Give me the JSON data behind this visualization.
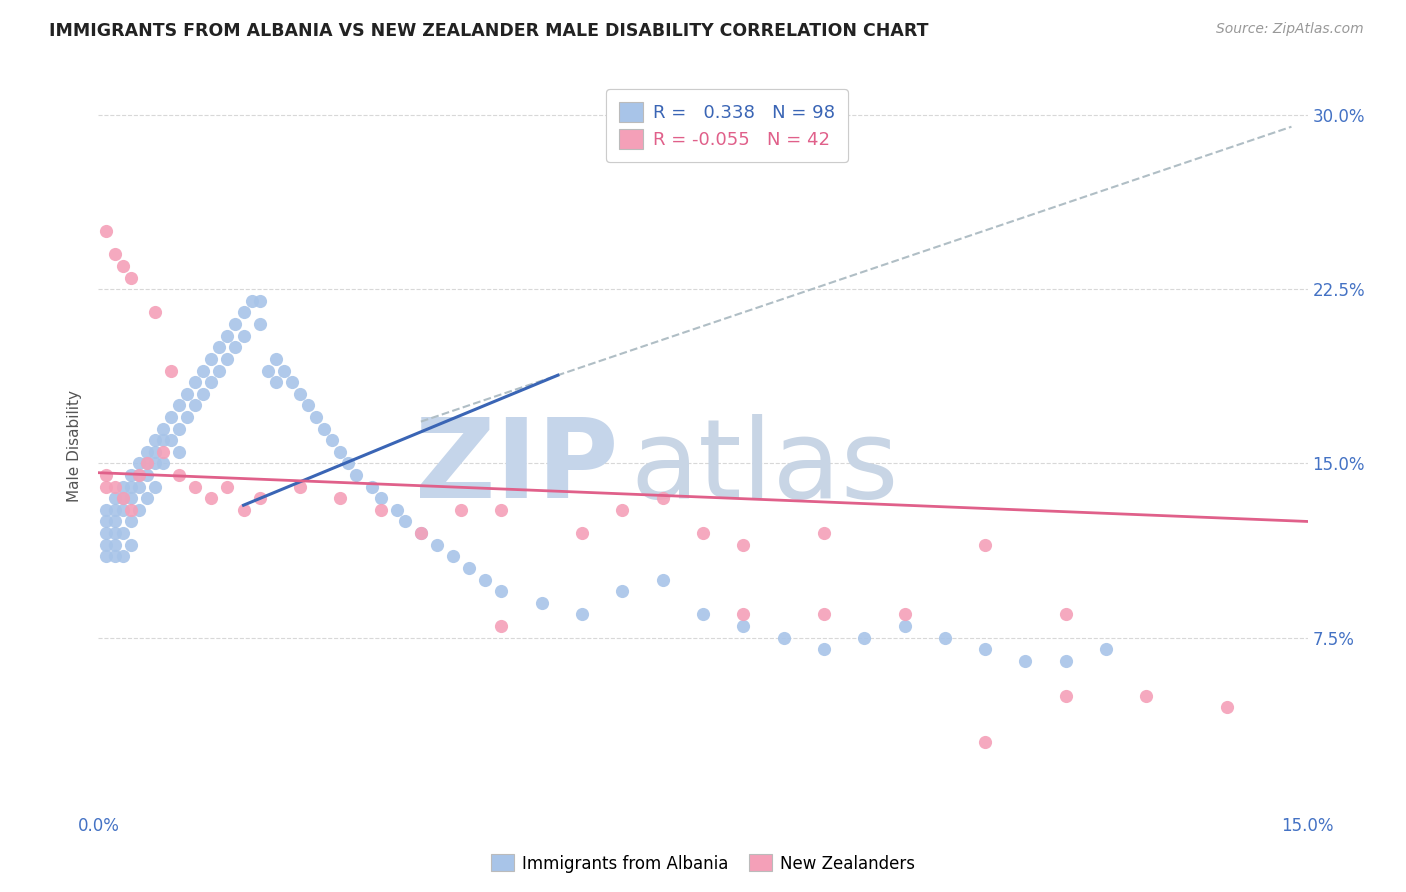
{
  "title": "IMMIGRANTS FROM ALBANIA VS NEW ZEALANDER MALE DISABILITY CORRELATION CHART",
  "source": "Source: ZipAtlas.com",
  "ylabel": "Male Disability",
  "xlim": [
    0.0,
    0.15
  ],
  "ylim": [
    0.0,
    0.315
  ],
  "r_albania": 0.338,
  "n_albania": 98,
  "r_nz": -0.055,
  "n_nz": 42,
  "legend_labels": [
    "Immigrants from Albania",
    "New Zealanders"
  ],
  "albania_color": "#a8c4e8",
  "nz_color": "#f4a0b8",
  "albania_line_color": "#3a65b5",
  "nz_line_color": "#e0608a",
  "dash_color": "#b0bec5",
  "watermark_zip_color": "#c5d5ea",
  "watermark_atlas_color": "#c8d5e5",
  "grid_color": "#d8d8d8",
  "ytick_vals": [
    0.075,
    0.15,
    0.225,
    0.3
  ],
  "ytick_labels": [
    "7.5%",
    "15.0%",
    "22.5%",
    "30.0%"
  ],
  "xtick_vals": [
    0.0,
    0.025,
    0.05,
    0.075,
    0.1,
    0.125,
    0.15
  ],
  "xtick_labels": [
    "0.0%",
    "",
    "",
    "",
    "",
    "",
    "15.0%"
  ],
  "alb_line_x": [
    0.018,
    0.057
  ],
  "alb_line_y": [
    0.132,
    0.188
  ],
  "dash_line_x": [
    0.04,
    0.148
  ],
  "dash_line_y": [
    0.168,
    0.295
  ],
  "nz_line_x": [
    0.0,
    0.15
  ],
  "nz_line_y": [
    0.146,
    0.125
  ],
  "alb_x": [
    0.001,
    0.001,
    0.001,
    0.001,
    0.001,
    0.002,
    0.002,
    0.002,
    0.002,
    0.002,
    0.002,
    0.003,
    0.003,
    0.003,
    0.003,
    0.003,
    0.004,
    0.004,
    0.004,
    0.004,
    0.004,
    0.005,
    0.005,
    0.005,
    0.005,
    0.006,
    0.006,
    0.006,
    0.006,
    0.007,
    0.007,
    0.007,
    0.007,
    0.008,
    0.008,
    0.008,
    0.009,
    0.009,
    0.01,
    0.01,
    0.01,
    0.011,
    0.011,
    0.012,
    0.012,
    0.013,
    0.013,
    0.014,
    0.014,
    0.015,
    0.015,
    0.016,
    0.016,
    0.017,
    0.017,
    0.018,
    0.018,
    0.019,
    0.02,
    0.02,
    0.021,
    0.022,
    0.022,
    0.023,
    0.024,
    0.025,
    0.026,
    0.027,
    0.028,
    0.029,
    0.03,
    0.031,
    0.032,
    0.034,
    0.035,
    0.037,
    0.038,
    0.04,
    0.042,
    0.044,
    0.046,
    0.048,
    0.05,
    0.055,
    0.06,
    0.065,
    0.07,
    0.075,
    0.08,
    0.085,
    0.09,
    0.095,
    0.1,
    0.105,
    0.11,
    0.115,
    0.12,
    0.125
  ],
  "alb_y": [
    0.13,
    0.125,
    0.12,
    0.115,
    0.11,
    0.135,
    0.13,
    0.125,
    0.12,
    0.115,
    0.11,
    0.14,
    0.135,
    0.13,
    0.12,
    0.11,
    0.145,
    0.14,
    0.135,
    0.125,
    0.115,
    0.15,
    0.145,
    0.14,
    0.13,
    0.155,
    0.15,
    0.145,
    0.135,
    0.16,
    0.155,
    0.15,
    0.14,
    0.165,
    0.16,
    0.15,
    0.17,
    0.16,
    0.175,
    0.165,
    0.155,
    0.18,
    0.17,
    0.185,
    0.175,
    0.19,
    0.18,
    0.195,
    0.185,
    0.2,
    0.19,
    0.205,
    0.195,
    0.21,
    0.2,
    0.215,
    0.205,
    0.22,
    0.22,
    0.21,
    0.19,
    0.195,
    0.185,
    0.19,
    0.185,
    0.18,
    0.175,
    0.17,
    0.165,
    0.16,
    0.155,
    0.15,
    0.145,
    0.14,
    0.135,
    0.13,
    0.125,
    0.12,
    0.115,
    0.11,
    0.105,
    0.1,
    0.095,
    0.09,
    0.085,
    0.095,
    0.1,
    0.085,
    0.08,
    0.075,
    0.07,
    0.075,
    0.08,
    0.075,
    0.07,
    0.065,
    0.065,
    0.07
  ],
  "nz_x": [
    0.001,
    0.001,
    0.001,
    0.002,
    0.002,
    0.003,
    0.003,
    0.004,
    0.004,
    0.005,
    0.006,
    0.007,
    0.008,
    0.009,
    0.01,
    0.012,
    0.014,
    0.016,
    0.018,
    0.02,
    0.025,
    0.03,
    0.035,
    0.04,
    0.045,
    0.05,
    0.06,
    0.07,
    0.075,
    0.08,
    0.09,
    0.1,
    0.11,
    0.12,
    0.13,
    0.14,
    0.05,
    0.065,
    0.08,
    0.09,
    0.11,
    0.12
  ],
  "nz_y": [
    0.145,
    0.14,
    0.25,
    0.14,
    0.24,
    0.135,
    0.235,
    0.13,
    0.23,
    0.145,
    0.15,
    0.215,
    0.155,
    0.19,
    0.145,
    0.14,
    0.135,
    0.14,
    0.13,
    0.135,
    0.14,
    0.135,
    0.13,
    0.12,
    0.13,
    0.13,
    0.12,
    0.135,
    0.12,
    0.115,
    0.12,
    0.085,
    0.115,
    0.085,
    0.05,
    0.045,
    0.08,
    0.13,
    0.085,
    0.085,
    0.03,
    0.05
  ]
}
